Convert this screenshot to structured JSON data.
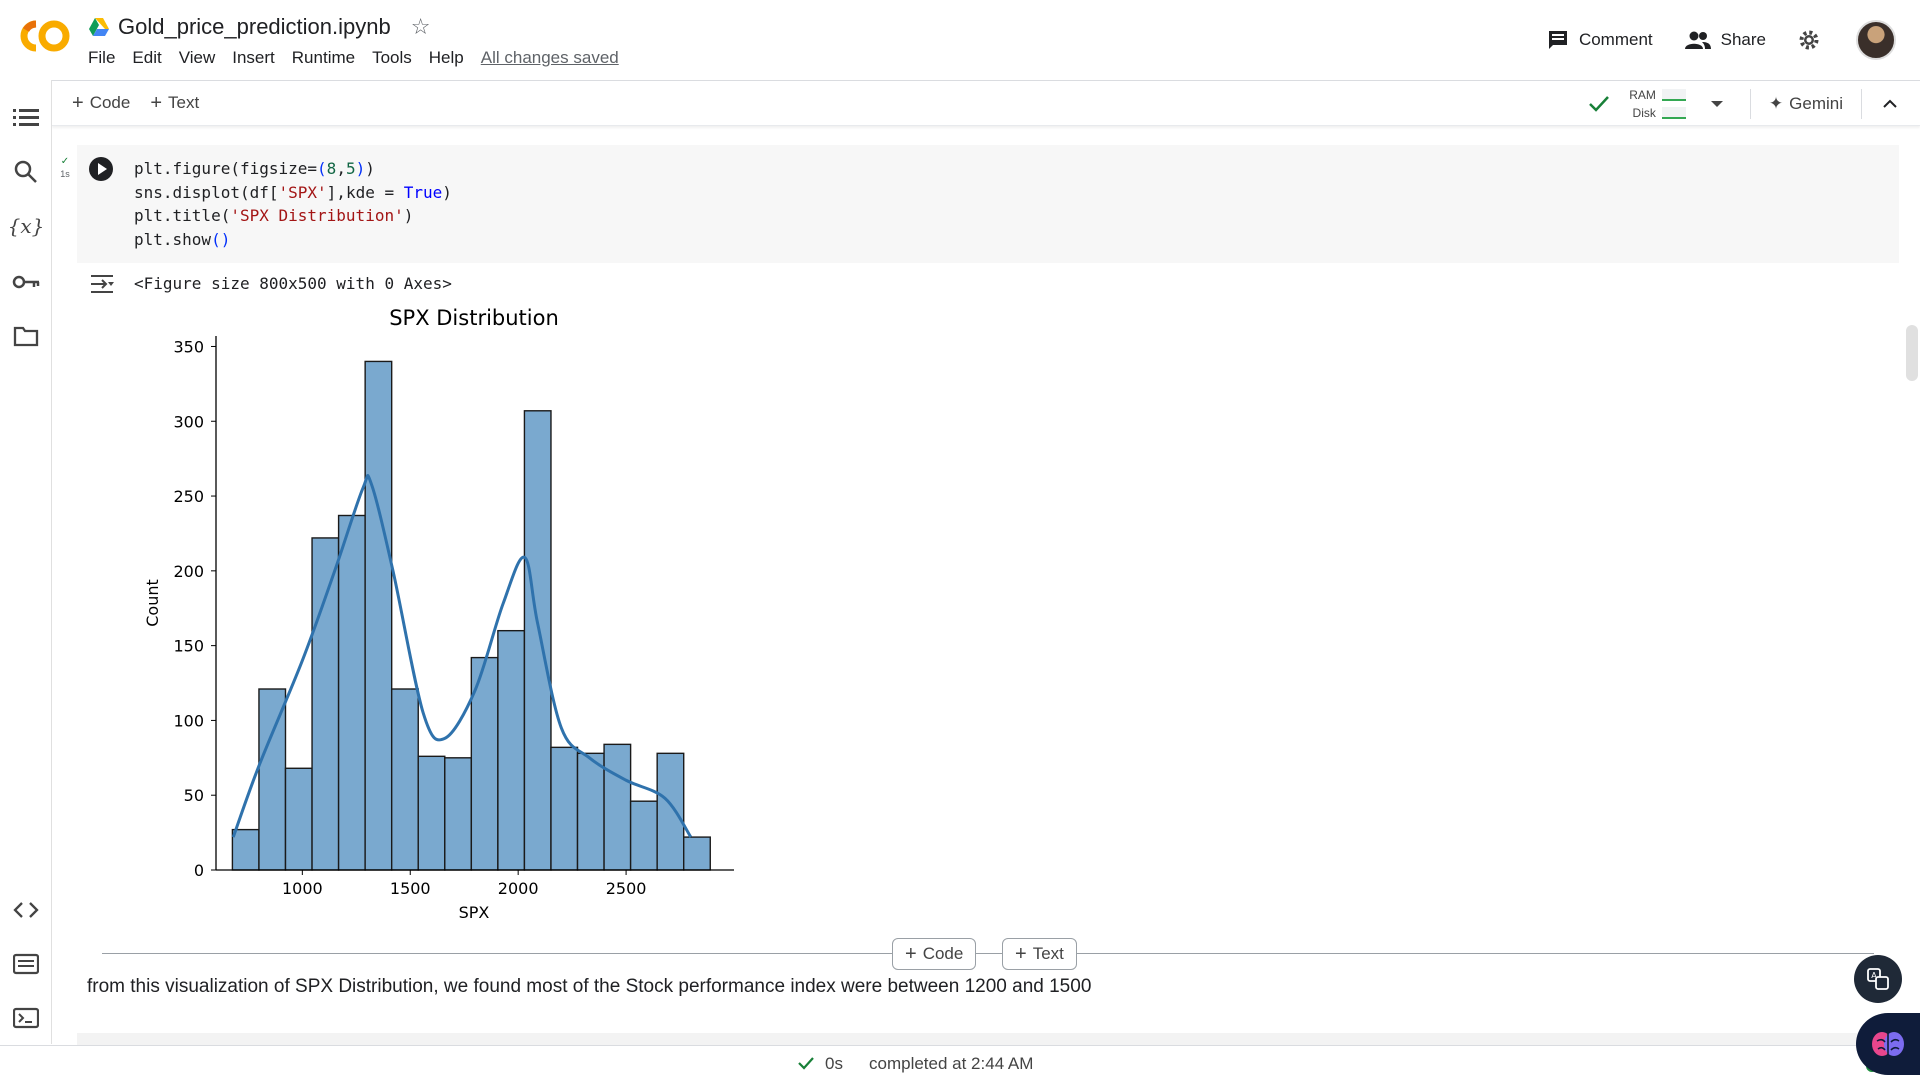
{
  "app": {
    "notebook_title": "Gold_price_prediction.ipynb",
    "save_status": "All changes saved"
  },
  "menu": [
    "File",
    "Edit",
    "View",
    "Insert",
    "Runtime",
    "Tools",
    "Help"
  ],
  "header": {
    "comment_label": "Comment",
    "share_label": "Share"
  },
  "toolbar": {
    "add_code_label": "Code",
    "add_text_label": "Text",
    "ram_label": "RAM",
    "disk_label": "Disk",
    "gemini_label": "Gemini"
  },
  "sidebar_icons": [
    "table-of-contents-icon",
    "search-icon",
    "variables-icon",
    "secrets-key-icon",
    "files-folder-icon",
    "code-snippets-icon",
    "command-palette-icon",
    "terminal-icon"
  ],
  "cell": {
    "exec_time": "1s",
    "code_lines": [
      "plt.figure(figsize=(8,5))",
      "sns.displot(df['SPX'],kde = True)",
      "plt.title('SPX Distribution')",
      "plt.show()"
    ],
    "output_text": "<Figure size 800x500 with 0 Axes>"
  },
  "chart_data": {
    "type": "bar",
    "title": "SPX Distribution",
    "xlabel": "SPX",
    "ylabel": "Count",
    "bin_edges": [
      676,
      799,
      922,
      1045,
      1168,
      1291,
      1414,
      1537,
      1660,
      1783,
      1906,
      2029,
      2152,
      2275,
      2398,
      2521,
      2644,
      2767,
      2890
    ],
    "values": [
      27,
      121,
      68,
      222,
      237,
      340,
      121,
      76,
      75,
      142,
      160,
      307,
      82,
      78,
      84,
      46,
      78,
      22
    ],
    "kde_x": [
      680,
      800,
      1000,
      1150,
      1280,
      1320,
      1420,
      1560,
      1660,
      1800,
      1930,
      2030,
      2090,
      2200,
      2330,
      2500,
      2680,
      2800
    ],
    "kde_y": [
      22,
      70,
      140,
      200,
      255,
      258,
      200,
      105,
      88,
      120,
      178,
      209,
      165,
      95,
      75,
      60,
      48,
      22
    ],
    "xticks": [
      1000,
      1500,
      2000,
      2500
    ],
    "yticks": [
      0,
      50,
      100,
      150,
      200,
      250,
      300,
      350
    ],
    "xlim": [
      600,
      3000
    ],
    "ylim": [
      0,
      357
    ],
    "bar_color": "#7aa9cf",
    "kde_color": "#2f72ac",
    "grid": false
  },
  "divider": {
    "add_code_label": "Code",
    "add_text_label": "Text"
  },
  "markdown": {
    "text": "from this visualization of SPX Distribution, we found most of the Stock performance index were between 1200 and 1500"
  },
  "statusbar": {
    "time": "0s",
    "completed": "completed at 2:44 AM"
  }
}
